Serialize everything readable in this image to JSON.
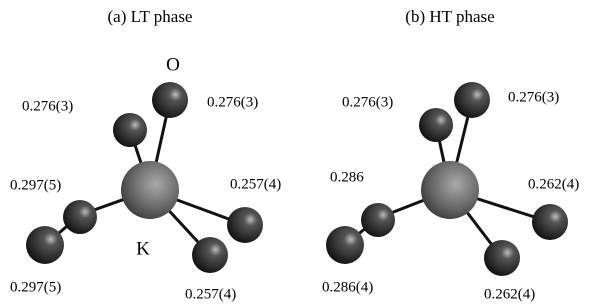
{
  "panels": [
    {
      "title": "(a) LT phase",
      "atom_labels": [
        "O",
        "K"
      ],
      "distances": [
        "0.276(3)",
        "0.276(3)",
        "0.297(5)",
        "0.257(4)",
        "0.297(5)",
        "0.257(4)"
      ]
    },
    {
      "title": "(b) HT phase",
      "distances": [
        "0.276(3)",
        "0.276(3)",
        "0.286",
        "0.262(4)",
        "0.286(4)",
        "0.262(4)"
      ]
    }
  ]
}
